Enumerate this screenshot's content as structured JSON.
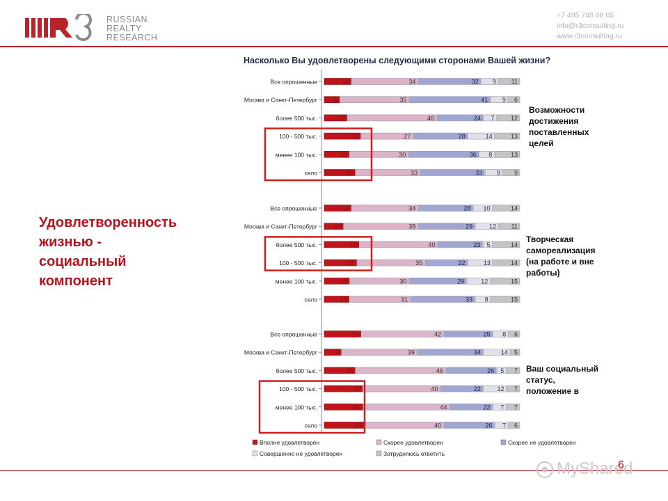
{
  "header": {
    "logo_mark": "R3",
    "logo_words": [
      "RUSSIAN",
      "REALTY",
      "RESEARCH"
    ],
    "contacts": [
      "+7 495 748 08 05",
      "info@r3consulting.ru",
      "www.r3consulting.ru"
    ]
  },
  "left_heading": [
    "Удовлетворенность",
    "жизнью -",
    "социальный",
    "компонент"
  ],
  "page_number": "6",
  "watermark": "MyShared",
  "colors": {
    "brand_red": "#b9232a",
    "series": [
      "#c0141c",
      "#dcb4c8",
      "#a0a6d0",
      "#e0e0e8",
      "#c4c4c4"
    ],
    "highlight_box": "#cc1f1f"
  },
  "chart_data": {
    "type": "bar",
    "orientation": "horizontal",
    "stacked": true,
    "percent": true,
    "title": "Насколько Вы удовлетворены следующими сторонами Вашей жизни?",
    "xlim": [
      0,
      100
    ],
    "legend_placement": "bottom",
    "grid": false,
    "series_names": [
      "Вполне удовлетворен",
      "Скорее удовлетворен",
      "Скорее не удовлетворен",
      "Совершенно не удовлетворен",
      "Затрудняюсь ответить"
    ],
    "groups": [
      {
        "note": "Возможности достижения поставленных целей",
        "categories": [
          "Все опрошенные",
          "Москва и Санкт-Петербург",
          "более 500 тыс.",
          "100 - 500 тыс.",
          "менее 100 тыс.",
          "село"
        ],
        "values": [
          [
            14,
            34,
            32,
            9,
            11
          ],
          [
            8,
            35,
            41,
            9,
            6
          ],
          [
            12,
            46,
            24,
            7,
            12
          ],
          [
            19,
            27,
            28,
            14,
            13
          ],
          [
            13,
            30,
            36,
            8,
            13
          ],
          [
            16,
            33,
            33,
            9,
            9
          ]
        ],
        "highlight_rows": [
          3,
          5
        ]
      },
      {
        "note": "Творческая самореализация (на работе и вне работы)",
        "categories": [
          "Все опрошенные",
          "Москва и Санкт-Петербург",
          "более 500 тыс.",
          "100 - 500 тыс.",
          "менее 100 тыс.",
          "село"
        ],
        "values": [
          [
            14,
            34,
            28,
            10,
            14
          ],
          [
            10,
            38,
            29,
            12,
            11
          ],
          [
            18,
            40,
            23,
            5,
            14
          ],
          [
            17,
            35,
            22,
            13,
            14
          ],
          [
            13,
            30,
            29,
            12,
            15
          ],
          [
            13,
            31,
            33,
            8,
            15
          ]
        ],
        "highlight_rows": [
          2,
          3
        ]
      },
      {
        "note": "Ваш социальный статус, положение в",
        "categories": [
          "Все опрошенные",
          "Москва и Санкт-Петербург",
          "более 500 тыс.",
          "100 - 500 тыс.",
          "менее 100 тыс.",
          "село"
        ],
        "values": [
          [
            19,
            42,
            25,
            8,
            6
          ],
          [
            9,
            39,
            34,
            14,
            5
          ],
          [
            16,
            46,
            26,
            5,
            7
          ],
          [
            20,
            40,
            22,
            12,
            7
          ],
          [
            20,
            44,
            22,
            7,
            7
          ],
          [
            21,
            40,
            26,
            7,
            6
          ]
        ],
        "highlight_rows": [
          3,
          5
        ]
      }
    ]
  }
}
